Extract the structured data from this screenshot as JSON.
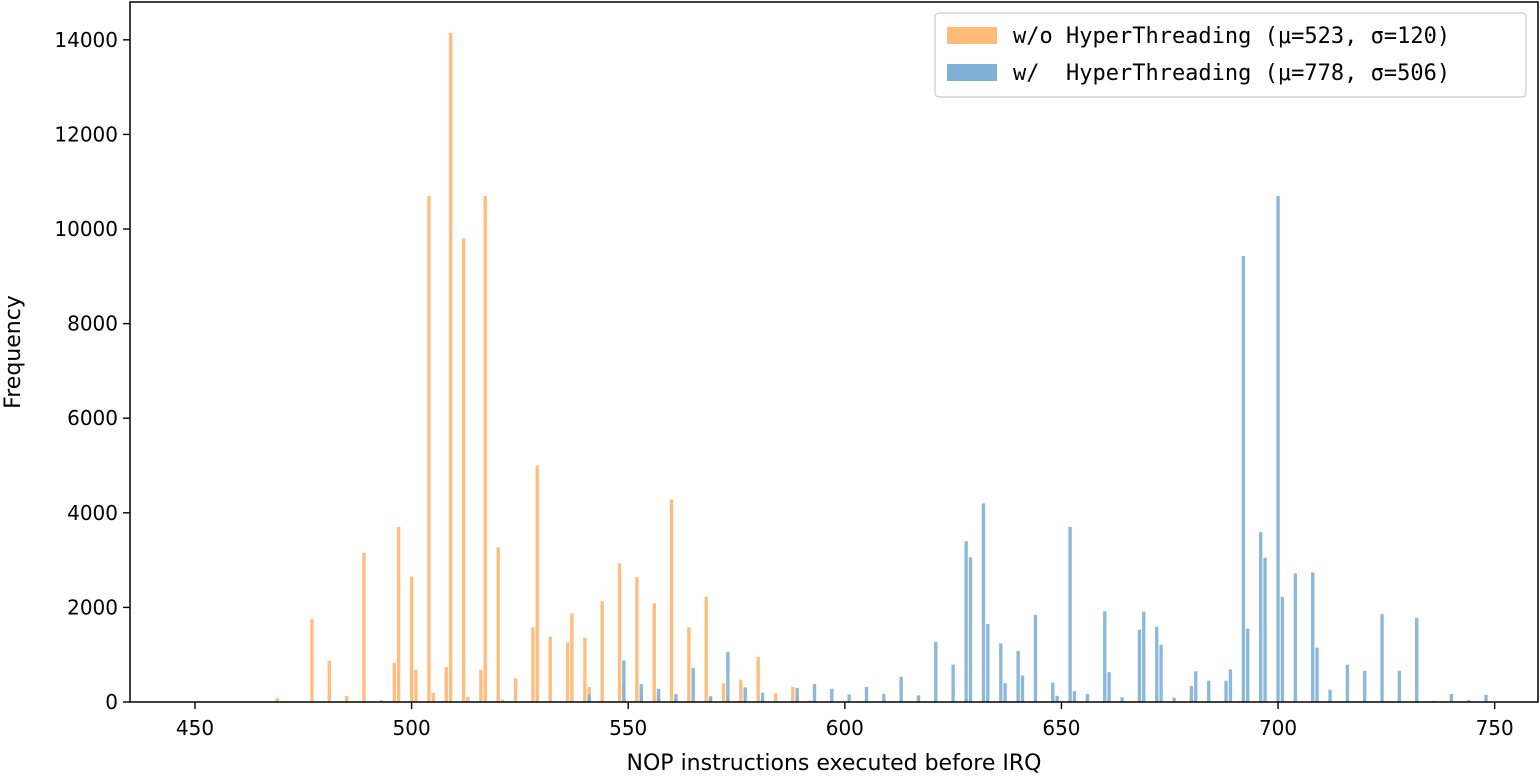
{
  "chart_data": {
    "type": "bar",
    "title": "",
    "xlabel": "NOP instructions executed before IRQ",
    "ylabel": "Frequency",
    "xlim": [
      435,
      760
    ],
    "ylim": [
      0,
      14800
    ],
    "xticks": [
      450,
      500,
      550,
      600,
      650,
      700,
      750
    ],
    "yticks": [
      0,
      2000,
      4000,
      6000,
      8000,
      10000,
      12000,
      14000
    ],
    "grid": false,
    "legend": {
      "placement": "top-right"
    },
    "bar_width": 1,
    "series": [
      {
        "name": "w/o HyperThreading (μ=523, σ=120)",
        "color": "#ffbb78",
        "x": [
          469,
          477,
          481,
          485,
          489,
          493,
          496,
          497,
          500,
          501,
          504,
          505,
          508,
          509,
          512,
          513,
          516,
          517,
          520,
          521,
          524,
          528,
          529,
          532,
          536,
          537,
          540,
          541,
          544,
          548,
          549,
          552,
          553,
          556,
          557,
          560,
          561,
          564,
          568,
          569,
          572,
          573,
          576,
          580,
          584,
          588,
          589,
          592,
          596
        ],
        "values": [
          80,
          1750,
          870,
          130,
          3150,
          40,
          830,
          3700,
          2650,
          680,
          10700,
          190,
          740,
          14150,
          9800,
          110,
          680,
          10700,
          3270,
          50,
          500,
          1580,
          5000,
          1380,
          1260,
          1870,
          1360,
          320,
          2130,
          2930,
          380,
          2640,
          260,
          2090,
          160,
          4280,
          80,
          1580,
          2230,
          120,
          390,
          100,
          470,
          950,
          180,
          320,
          150,
          30,
          20
        ]
      },
      {
        "name": "w/  HyperThreading (μ=778, σ=506)",
        "color": "#7fb1d6",
        "x": [
          541,
          549,
          553,
          557,
          561,
          565,
          569,
          573,
          577,
          581,
          589,
          593,
          597,
          601,
          605,
          609,
          613,
          617,
          621,
          625,
          628,
          629,
          632,
          633,
          636,
          637,
          640,
          641,
          644,
          648,
          649,
          652,
          653,
          656,
          660,
          661,
          664,
          668,
          669,
          672,
          673,
          676,
          680,
          681,
          684,
          688,
          689,
          692,
          693,
          696,
          697,
          700,
          701,
          704,
          708,
          709,
          712,
          716,
          720,
          724,
          728,
          732,
          736,
          740,
          744,
          748
        ],
        "values": [
          160,
          880,
          380,
          280,
          170,
          720,
          120,
          1060,
          310,
          200,
          300,
          380,
          280,
          160,
          320,
          170,
          530,
          140,
          1270,
          790,
          3400,
          3060,
          4200,
          1650,
          1240,
          400,
          1080,
          560,
          1840,
          410,
          130,
          3700,
          230,
          170,
          1920,
          630,
          100,
          1530,
          1910,
          1590,
          1210,
          90,
          340,
          650,
          450,
          450,
          690,
          9430,
          1550,
          3590,
          3050,
          10700,
          2220,
          2720,
          2740,
          1150,
          260,
          790,
          660,
          1860,
          660,
          1780,
          20,
          170,
          40,
          150
        ]
      }
    ]
  }
}
